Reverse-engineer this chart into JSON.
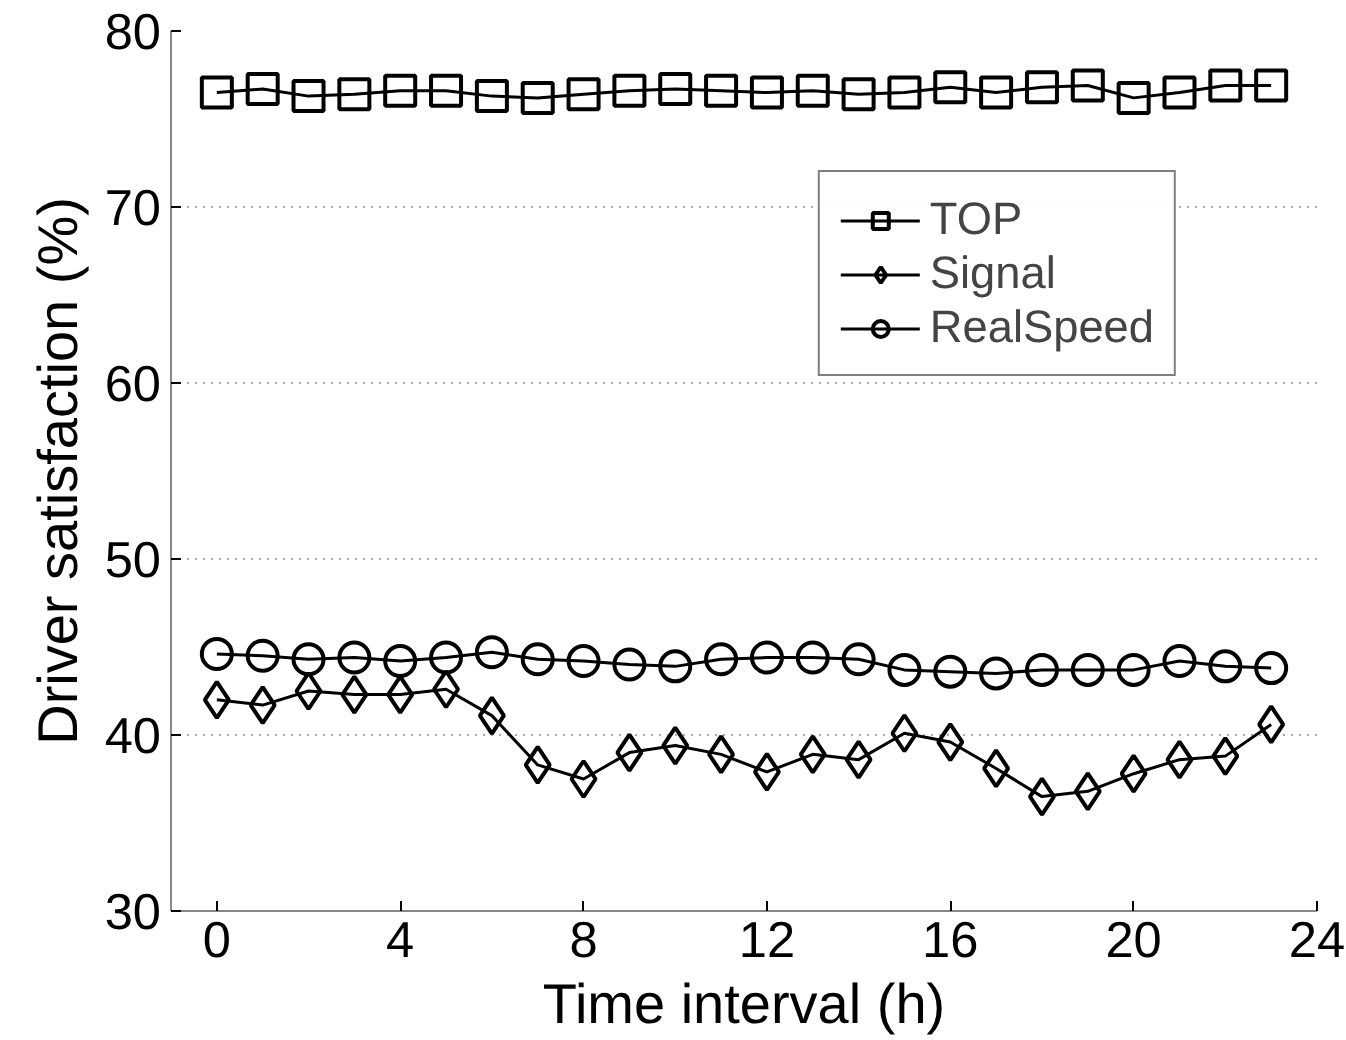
{
  "chart_data": {
    "type": "line",
    "xlabel": "Time interval (h)",
    "ylabel": "Driver satisfaction (%)",
    "x": [
      0,
      1,
      2,
      3,
      4,
      5,
      6,
      7,
      8,
      9,
      10,
      11,
      12,
      13,
      14,
      15,
      16,
      17,
      18,
      19,
      20,
      21,
      22,
      23
    ],
    "series": [
      {
        "name": "TOP",
        "color": "#000000",
        "marker": "square",
        "values": [
          76.5,
          76.7,
          76.3,
          76.4,
          76.6,
          76.6,
          76.3,
          76.2,
          76.4,
          76.6,
          76.7,
          76.6,
          76.5,
          76.6,
          76.4,
          76.5,
          76.8,
          76.5,
          76.8,
          76.9,
          76.2,
          76.5,
          76.9,
          76.9
        ]
      },
      {
        "name": "Signal",
        "color": "#000000",
        "marker": "diamond",
        "values": [
          42.0,
          41.7,
          42.5,
          42.3,
          42.3,
          42.6,
          41.1,
          38.3,
          37.5,
          39.0,
          39.4,
          38.9,
          37.9,
          38.9,
          38.6,
          40.1,
          39.6,
          38.1,
          36.5,
          36.8,
          37.8,
          38.6,
          38.8,
          40.6
        ]
      },
      {
        "name": "RealSpeed",
        "color": "#000000",
        "marker": "circle",
        "values": [
          44.6,
          44.5,
          44.3,
          44.4,
          44.2,
          44.4,
          44.7,
          44.3,
          44.2,
          44.0,
          43.9,
          44.3,
          44.4,
          44.4,
          44.3,
          43.7,
          43.6,
          43.5,
          43.7,
          43.7,
          43.7,
          44.2,
          43.9,
          43.8
        ]
      }
    ],
    "xlim": [
      -1,
      24
    ],
    "xticks": [
      0,
      4,
      8,
      12,
      16,
      20,
      24
    ],
    "ylim": [
      30,
      80
    ],
    "yticks": [
      30,
      40,
      50,
      60,
      70,
      80
    ],
    "grid": "y",
    "legend": "top right",
    "line_style": "solid"
  }
}
